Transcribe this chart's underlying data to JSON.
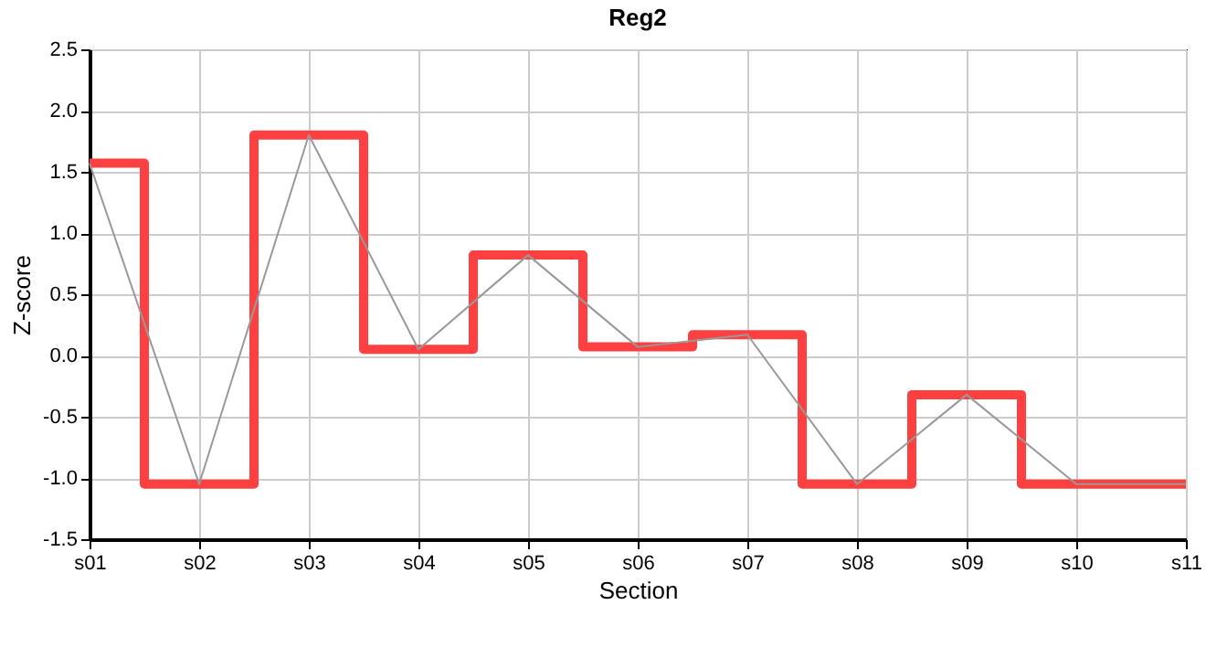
{
  "chart_data": {
    "type": "step",
    "title": "Reg2",
    "xlabel": "Section",
    "ylabel": "Z-score",
    "categories": [
      "s01",
      "s02",
      "s03",
      "s04",
      "s05",
      "s06",
      "s07",
      "s08",
      "s09",
      "s10",
      "s11"
    ],
    "series": [
      {
        "color": "#ff4040",
        "values": [
          1.57,
          -1.05,
          1.8,
          0.05,
          0.82,
          0.07,
          0.17,
          -1.05,
          -0.32,
          -1.05,
          -1.05
        ]
      },
      {
        "type": "line",
        "color": "#999999",
        "values": [
          1.57,
          -1.05,
          1.8,
          0.05,
          0.82,
          0.07,
          0.17,
          -1.05,
          -0.32,
          -1.05,
          -1.05
        ]
      }
    ],
    "ylim": [
      -1.5,
      2.5
    ],
    "yticks": [
      {
        "value": -1.5,
        "label": "-1.5"
      },
      {
        "value": -1,
        "label": "-1.0"
      },
      {
        "value": -0.5,
        "label": "-0.5"
      },
      {
        "value": 0,
        "label": "0.0"
      },
      {
        "value": 0.5,
        "label": "0.5"
      },
      {
        "value": 1,
        "label": "1.0"
      },
      {
        "value": 1.5,
        "label": "1.5"
      },
      {
        "value": 2,
        "label": "2.0"
      },
      {
        "value": 2.5,
        "label": "2.5"
      }
    ],
    "grid": true,
    "line_style": "solid",
    "marker": "none"
  }
}
